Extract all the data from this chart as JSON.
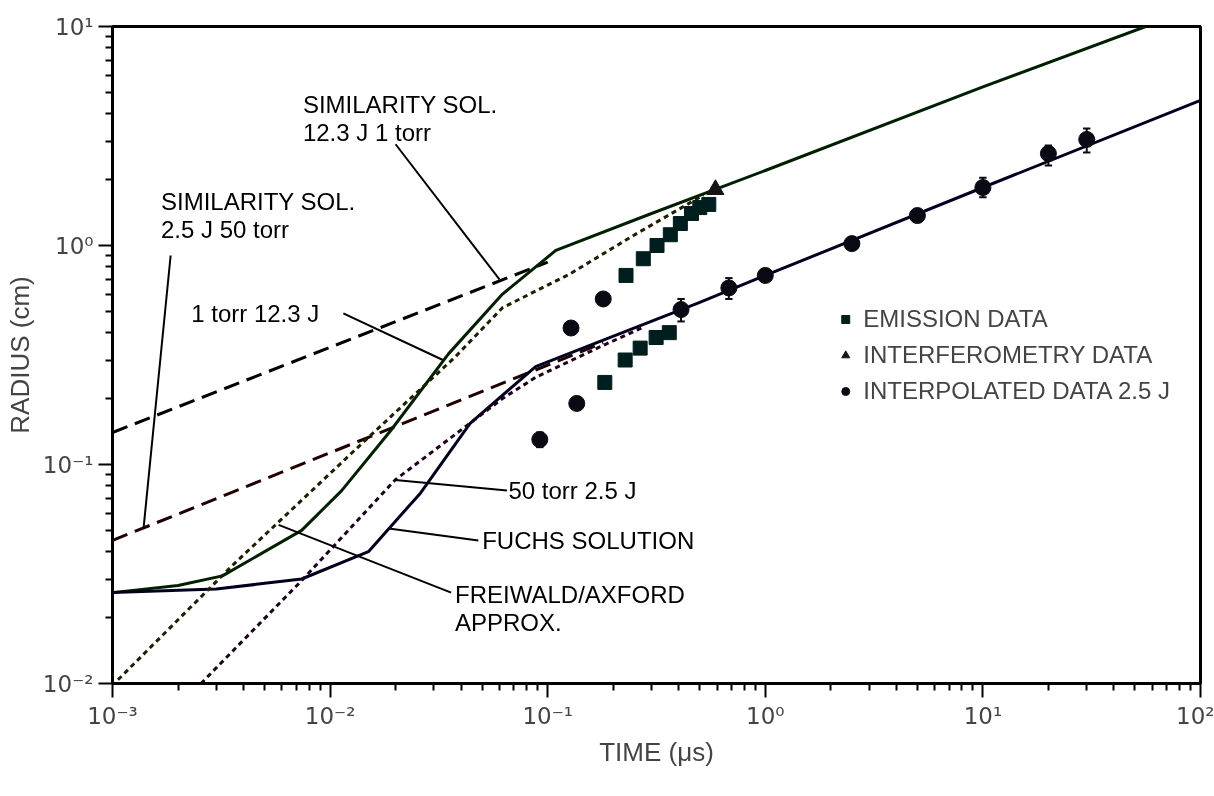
{
  "chart_data": {
    "type": "line",
    "xlabel": "TIME (μs)",
    "ylabel": "RADIUS (cm)",
    "log": "xy",
    "grid": false,
    "legend": "right",
    "xlim": [
      0.001,
      100
    ],
    "ylim": [
      0.01,
      10
    ],
    "xticks": [
      {
        "value": 0.001,
        "label": "10⁻³"
      },
      {
        "value": 0.01,
        "label": "10⁻²"
      },
      {
        "value": 0.1,
        "label": "10⁻¹"
      },
      {
        "value": 1,
        "label": "10⁰"
      },
      {
        "value": 10,
        "label": "10¹"
      },
      {
        "value": 100,
        "label": "10²"
      }
    ],
    "yticks": [
      {
        "value": 0.01,
        "label": "10⁻²"
      },
      {
        "value": 0.1,
        "label": "10⁻¹"
      },
      {
        "value": 1,
        "label": "10⁰"
      },
      {
        "value": 10,
        "label": "10¹"
      }
    ],
    "series": [
      {
        "line_style": "dashed",
        "color": "#000000",
        "x": [
          0.001,
          0.1
        ],
        "values": [
          0.14,
          0.84
        ]
      },
      {
        "line_style": "dashed",
        "color": "#1e0000",
        "x": [
          0.001,
          0.18
        ],
        "values": [
          0.045,
          0.36
        ]
      },
      {
        "line_style": "solid",
        "color": "#001e00",
        "x": [
          0.001,
          0.002,
          0.0032,
          0.0074,
          0.0113,
          0.019,
          0.035,
          0.062,
          0.109,
          0.3,
          1,
          10,
          56
        ],
        "values": [
          0.026,
          0.028,
          0.031,
          0.05,
          0.076,
          0.143,
          0.32,
          0.6,
          0.95,
          1.4,
          2.2,
          5.3,
          10
        ]
      },
      {
        "line_style": "solid",
        "color": "#00001e",
        "x": [
          0.001,
          0.003,
          0.0074,
          0.015,
          0.026,
          0.044,
          0.088,
          0.18,
          0.5,
          1,
          10,
          100
        ],
        "values": [
          0.026,
          0.027,
          0.03,
          0.04,
          0.074,
          0.154,
          0.28,
          0.37,
          0.55,
          0.73,
          1.84,
          4.6
        ]
      },
      {
        "line_style": "dotted",
        "color": "#1e1e00",
        "x": [
          0.00106,
          0.0036,
          0.015,
          0.0376,
          0.062,
          0.126,
          0.255,
          0.52
        ],
        "values": [
          0.0104,
          0.035,
          0.133,
          0.31,
          0.52,
          0.74,
          1.13,
          1.7
        ]
      },
      {
        "line_style": "dotted",
        "color": "#1e001e",
        "x": [
          0.00255,
          0.0074,
          0.0199,
          0.062,
          0.088,
          0.18,
          0.27
        ],
        "values": [
          0.01,
          0.0295,
          0.085,
          0.2,
          0.25,
          0.35,
          0.42
        ]
      },
      {
        "type": "scatter",
        "marker": "square",
        "name": "EMISSION DATA",
        "color": "#001e1e",
        "x": [
          0.229,
          0.275,
          0.318,
          0.366,
          0.407,
          0.458,
          0.5,
          0.55,
          0.183,
          0.227,
          0.266,
          0.315,
          0.362
        ],
        "values": [
          0.73,
          0.87,
          1.0,
          1.12,
          1.26,
          1.4,
          1.49,
          1.54,
          0.237,
          0.3,
          0.34,
          0.38,
          0.4
        ]
      },
      {
        "type": "scatter",
        "marker": "triangle",
        "name": "INTERFEROMETRY DATA",
        "color": "#141414",
        "x": [
          0.59
        ],
        "values": [
          1.8
        ]
      },
      {
        "type": "scatter",
        "marker": "circle",
        "name": "INTERPOLATED DATA 2.5 J",
        "color": "#0a0a14",
        "x": [
          0.092,
          0.128,
          0.136,
          0.18,
          0.41,
          0.68,
          1.0,
          2.5,
          5,
          10,
          20,
          30
        ],
        "values": [
          0.13,
          0.42,
          0.19,
          0.57,
          0.51,
          0.64,
          0.73,
          1.02,
          1.37,
          1.84,
          2.63,
          3.05
        ],
        "errors": [
          [
            0.12,
            0.14
          ],
          null,
          null,
          null,
          [
            0.45,
            0.57
          ],
          [
            0.57,
            0.71
          ],
          null,
          null,
          null,
          [
            1.66,
            2.04
          ],
          [
            2.32,
            2.86
          ],
          [
            2.66,
            3.42
          ]
        ]
      }
    ],
    "annotations": [
      {
        "text": "SIMILARITY SOL.\n12.3 J  1 torr",
        "x": 0.06,
        "y": 0.7
      },
      {
        "text": "SIMILARITY SOL.\n2.5 J  50 torr",
        "x": 0.00139,
        "y": 0.0515
      },
      {
        "text": "1 torr  12.3 J",
        "x": 0.033,
        "y": 0.3
      },
      {
        "text": "50 torr  2.5 J",
        "x": 0.0199,
        "y": 0.085
      },
      {
        "text": "FUCHS SOLUTION",
        "x": 0.0186,
        "y": 0.051
      },
      {
        "text": "FREIWALD/AXFORD\nAPPROX.",
        "x": 0.0058,
        "y": 0.053
      }
    ]
  }
}
